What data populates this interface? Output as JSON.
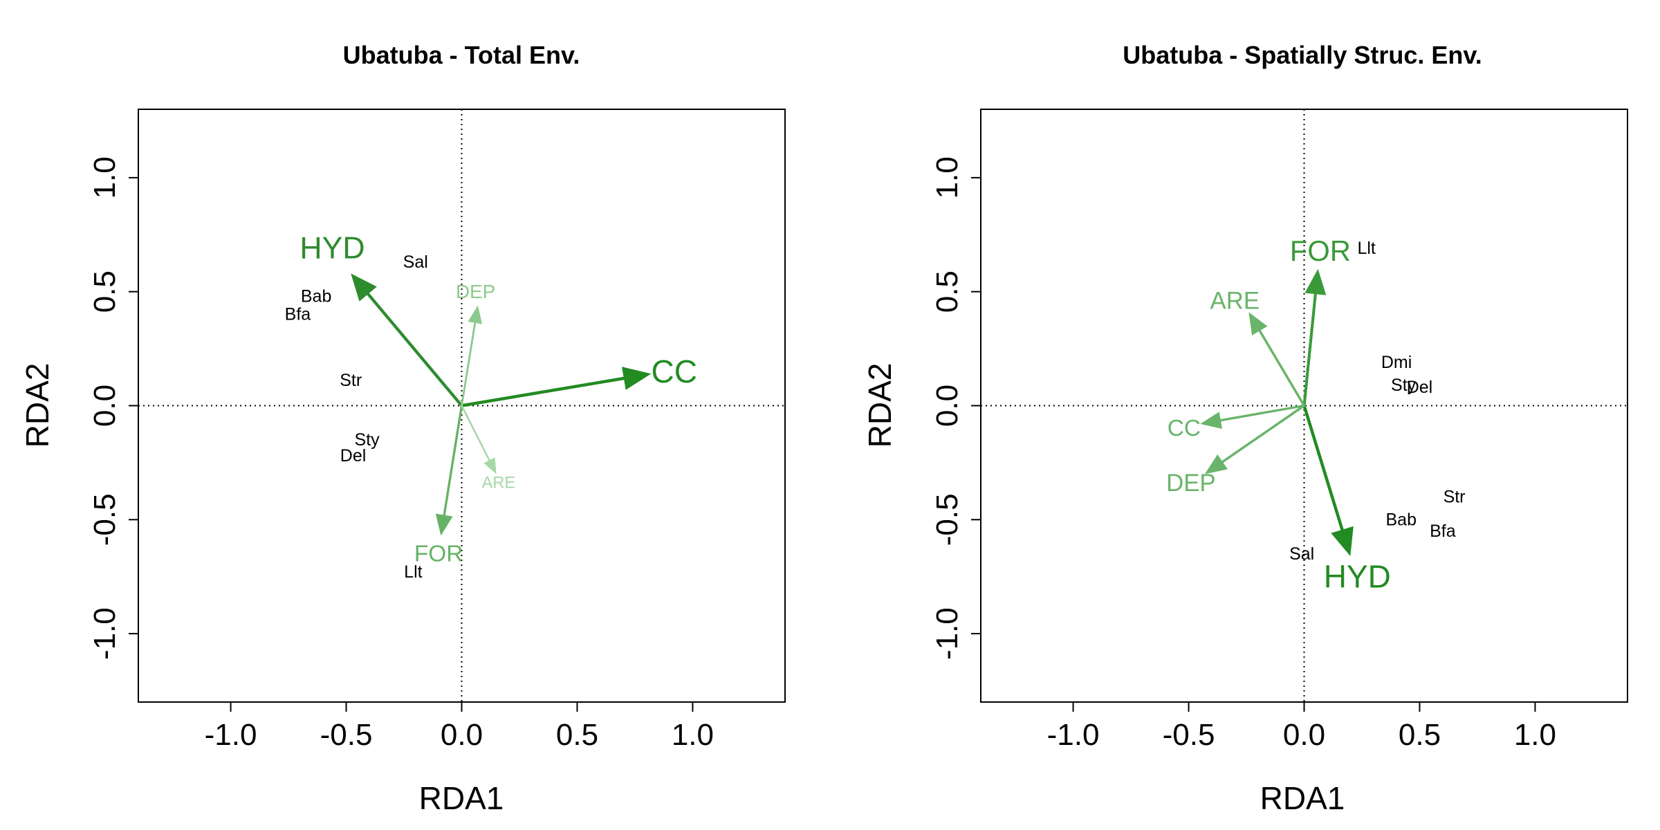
{
  "figure": {
    "background": "#ffffff"
  },
  "chart_data": [
    {
      "type": "biplot",
      "title": "Ubatuba - Total Env.",
      "xlabel": "RDA1",
      "ylabel": "RDA2",
      "xlim": [
        -1.4,
        1.4
      ],
      "ylim": [
        -1.3,
        1.3
      ],
      "xticks": [
        -1.0,
        -0.5,
        0.0,
        0.5,
        1.0
      ],
      "yticks": [
        -1.0,
        -0.5,
        0.0,
        0.5,
        1.0
      ],
      "xtick_labels": [
        "-1.0",
        "-0.5",
        "0.0",
        "0.5",
        "1.0"
      ],
      "ytick_labels": [
        "-1.0",
        "-0.5",
        "0.0",
        "0.5",
        "1.0"
      ],
      "reference_lines": {
        "x": 0,
        "y": 0,
        "style": "dotted"
      },
      "arrows": [
        {
          "name": "CC",
          "x": 0.82,
          "y": 0.14,
          "color": "#228b22",
          "label_x": 0.92,
          "label_y": 0.15,
          "weight": 1.0
        },
        {
          "name": "HYD",
          "x": -0.48,
          "y": 0.58,
          "color": "#2e8b2e",
          "label_x": -0.56,
          "label_y": 0.69,
          "weight": 0.95
        },
        {
          "name": "FOR",
          "x": -0.09,
          "y": -0.57,
          "color": "#66b266",
          "label_x": -0.1,
          "label_y": -0.65,
          "weight": 0.55
        },
        {
          "name": "DEP",
          "x": 0.07,
          "y": 0.44,
          "color": "#8dc98d",
          "label_x": 0.06,
          "label_y": 0.5,
          "weight": 0.35
        },
        {
          "name": "ARE",
          "x": 0.15,
          "y": -0.3,
          "color": "#a6d7a6",
          "label_x": 0.16,
          "label_y": -0.34,
          "weight": 0.2
        }
      ],
      "species": [
        {
          "name": "Sal",
          "x": -0.2,
          "y": 0.63
        },
        {
          "name": "Bab",
          "x": -0.63,
          "y": 0.48
        },
        {
          "name": "Bfa",
          "x": -0.71,
          "y": 0.4
        },
        {
          "name": "Str",
          "x": -0.48,
          "y": 0.11
        },
        {
          "name": "Sty",
          "x": -0.41,
          "y": -0.15
        },
        {
          "name": "Del",
          "x": -0.47,
          "y": -0.22
        },
        {
          "name": "Llt",
          "x": -0.21,
          "y": -0.73
        }
      ]
    },
    {
      "type": "biplot",
      "title": "Ubatuba - Spatially Struc. Env.",
      "xlabel": "RDA1",
      "ylabel": "RDA2",
      "xlim": [
        -1.4,
        1.4
      ],
      "ylim": [
        -1.3,
        1.3
      ],
      "xticks": [
        -1.0,
        -0.5,
        0.0,
        0.5,
        1.0
      ],
      "yticks": [
        -1.0,
        -0.5,
        0.0,
        0.5,
        1.0
      ],
      "xtick_labels": [
        "-1.0",
        "-0.5",
        "0.0",
        "0.5",
        "1.0"
      ],
      "ytick_labels": [
        "-1.0",
        "-0.5",
        "0.0",
        "0.5",
        "1.0"
      ],
      "reference_lines": {
        "x": 0,
        "y": 0,
        "style": "dotted"
      },
      "arrows": [
        {
          "name": "HYD",
          "x": 0.2,
          "y": -0.66,
          "color": "#228b22",
          "label_x": 0.23,
          "label_y": -0.75,
          "weight": 1.0
        },
        {
          "name": "FOR",
          "x": 0.06,
          "y": 0.6,
          "color": "#3a9a3a",
          "label_x": 0.07,
          "label_y": 0.68,
          "weight": 0.85
        },
        {
          "name": "ARE",
          "x": -0.24,
          "y": 0.41,
          "color": "#6ab46a",
          "label_x": -0.3,
          "label_y": 0.46,
          "weight": 0.6
        },
        {
          "name": "CC",
          "x": -0.45,
          "y": -0.08,
          "color": "#6ab46a",
          "label_x": -0.52,
          "label_y": -0.1,
          "weight": 0.55
        },
        {
          "name": "DEP",
          "x": -0.43,
          "y": -0.3,
          "color": "#6ab46a",
          "label_x": -0.49,
          "label_y": -0.34,
          "weight": 0.6
        }
      ],
      "species": [
        {
          "name": "Llt",
          "x": 0.27,
          "y": 0.69
        },
        {
          "name": "Dmi",
          "x": 0.4,
          "y": 0.19
        },
        {
          "name": "Sty",
          "x": 0.43,
          "y": 0.09
        },
        {
          "name": "Del",
          "x": 0.5,
          "y": 0.08
        },
        {
          "name": "Str",
          "x": 0.65,
          "y": -0.4
        },
        {
          "name": "Bab",
          "x": 0.42,
          "y": -0.5
        },
        {
          "name": "Bfa",
          "x": 0.6,
          "y": -0.55
        },
        {
          "name": "Sal",
          "x": -0.01,
          "y": -0.65
        }
      ]
    }
  ]
}
